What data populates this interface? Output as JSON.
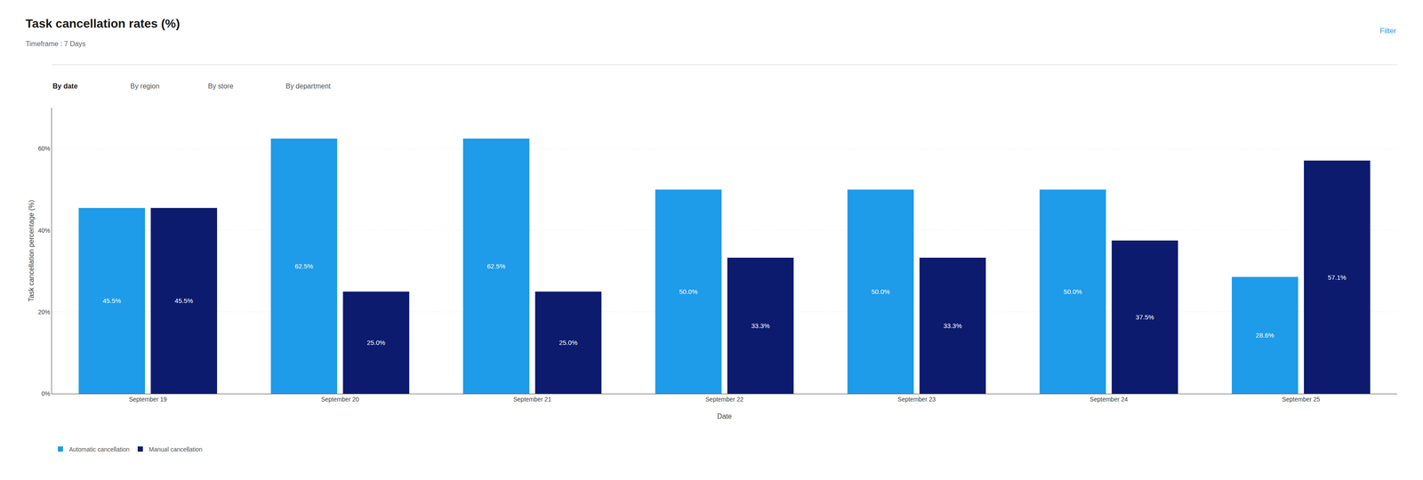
{
  "chart_data": {
    "type": "bar",
    "title": "Task cancellation rates (%)",
    "subtitle": "Timeframe : 7 Days",
    "annotations": [
      "Filter",
      "By date",
      "By region",
      "By store",
      "By department"
    ],
    "xlabel": "Date",
    "ylabel": "Task cancellation percentage (%)",
    "categories": [
      "September 19",
      "September 20",
      "September 21",
      "September 22",
      "September 23",
      "September 24",
      "September 25"
    ],
    "series": [
      {
        "name": "Automatic cancellation",
        "color": "#1E9BE9",
        "values": [
          45.5,
          62.5,
          62.5,
          50.0,
          50.0,
          50.0,
          28.6
        ],
        "value_labels": [
          "45.5%",
          "62.5%",
          "62.5%",
          "50.0%",
          "50.0%",
          "50.0%",
          "28.6%"
        ]
      },
      {
        "name": "Manual cancellation",
        "color": "#0D1B6E",
        "values": [
          45.5,
          25.0,
          25.0,
          33.3,
          33.3,
          37.5,
          57.1
        ],
        "value_labels": [
          "45.5%",
          "25.0%",
          "25.0%",
          "33.3%",
          "33.3%",
          "37.5%",
          "57.1%"
        ]
      }
    ],
    "ylim": [
      0,
      70
    ],
    "yticks": [
      {
        "value": 0,
        "label": "0%"
      },
      {
        "value": 20,
        "label": "20%"
      },
      {
        "value": 40,
        "label": "40%"
      },
      {
        "value": 60,
        "label": "60%"
      }
    ],
    "grid": true,
    "legend": "lower left",
    "data_labels": true
  }
}
